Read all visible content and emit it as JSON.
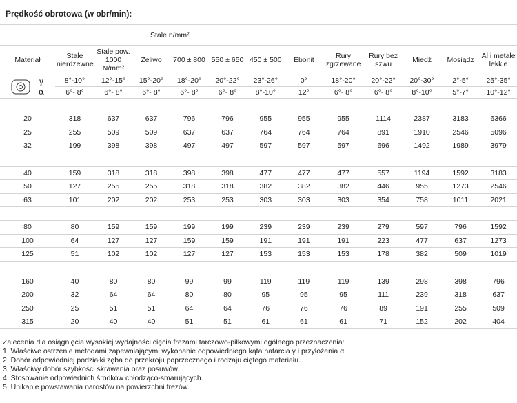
{
  "title": "Prędkość obrotowa (w obr/min):",
  "table": {
    "group_header": "Stale n/mm²",
    "columns": [
      "Materiał",
      "Stale nierdzewne",
      "Stale pow. 1000 N/mm²",
      "Żeliwo",
      "700 ± 800",
      "550 ± 650",
      "450 ± 500",
      "Ebonit",
      "Rury zgrzewane",
      "Rury bez szwu",
      "Miedź",
      "Mosiądz",
      "Al i metale lekkie"
    ],
    "angle_rows": [
      {
        "symbol": "γ",
        "values": [
          "8°-10°",
          "12°-15°",
          "15°-20°",
          "18°-20°",
          "20°-22°",
          "23°-26°",
          "0°",
          "18°-20°",
          "20°-22°",
          "20°-30°",
          "2°-5°",
          "25°-35°"
        ]
      },
      {
        "symbol": "α",
        "values": [
          "6°- 8°",
          "6°- 8°",
          "6°- 8°",
          "6°- 8°",
          "6°- 8°",
          "8°-10°",
          "12°",
          "6°- 8°",
          "6°- 8°",
          "8°-10°",
          "5°-7°",
          "10°-12°"
        ]
      }
    ],
    "row_groups": [
      [
        {
          "diameter": 20,
          "values": [
            318,
            637,
            637,
            796,
            796,
            955,
            955,
            955,
            1114,
            2387,
            3183,
            6366
          ]
        },
        {
          "diameter": 25,
          "values": [
            255,
            509,
            509,
            637,
            637,
            764,
            764,
            764,
            891,
            1910,
            2546,
            5096
          ]
        },
        {
          "diameter": 32,
          "values": [
            199,
            398,
            398,
            497,
            497,
            597,
            597,
            597,
            696,
            1492,
            1989,
            3979
          ]
        }
      ],
      [
        {
          "diameter": 40,
          "values": [
            159,
            318,
            318,
            398,
            398,
            477,
            477,
            477,
            557,
            1194,
            1592,
            3183
          ]
        },
        {
          "diameter": 50,
          "values": [
            127,
            255,
            255,
            318,
            318,
            382,
            382,
            382,
            446,
            955,
            1273,
            2546
          ]
        },
        {
          "diameter": 63,
          "values": [
            101,
            202,
            202,
            253,
            253,
            303,
            303,
            303,
            354,
            758,
            1011,
            2021
          ]
        }
      ],
      [
        {
          "diameter": 80,
          "values": [
            80,
            159,
            159,
            199,
            199,
            239,
            239,
            239,
            279,
            597,
            796,
            1592
          ]
        },
        {
          "diameter": 100,
          "values": [
            64,
            127,
            127,
            159,
            159,
            191,
            191,
            191,
            223,
            477,
            637,
            1273
          ]
        },
        {
          "diameter": 125,
          "values": [
            51,
            102,
            102,
            127,
            127,
            153,
            153,
            153,
            178,
            382,
            509,
            1019
          ]
        }
      ],
      [
        {
          "diameter": 160,
          "values": [
            40,
            80,
            80,
            99,
            99,
            119,
            119,
            119,
            139,
            298,
            398,
            796
          ]
        },
        {
          "diameter": 200,
          "values": [
            32,
            64,
            64,
            80,
            80,
            95,
            95,
            95,
            111,
            239,
            318,
            637
          ]
        },
        {
          "diameter": 250,
          "values": [
            25,
            51,
            51,
            64,
            64,
            76,
            76,
            76,
            89,
            191,
            255,
            509
          ]
        },
        {
          "diameter": 315,
          "values": [
            20,
            40,
            40,
            51,
            51,
            61,
            61,
            61,
            71,
            152,
            202,
            404
          ]
        }
      ]
    ]
  },
  "notes": {
    "intro": "Zalecenia dla osiągnięcia wysokiej wydajności cięcia frezami tarczowo-piłkowymi ogólnego przeznaczenia:",
    "items": [
      "1. Właściwe ostrzenie metodami zapewniającymi wykonanie odpowiedniego kąta natarcia γ i przyłożenia α.",
      "2. Dobór odpowiedniej podziałki zęba do przekroju poprzecznego i rodzaju ciętego materiału.",
      "3. Właściwy dobór szybkości skrawania oraz posuwów.",
      "4. Stosowanie odpowiednich środków chłodząco-smarujących.",
      "5. Unikanie powstawania narostów na powierzchni frezów."
    ]
  }
}
